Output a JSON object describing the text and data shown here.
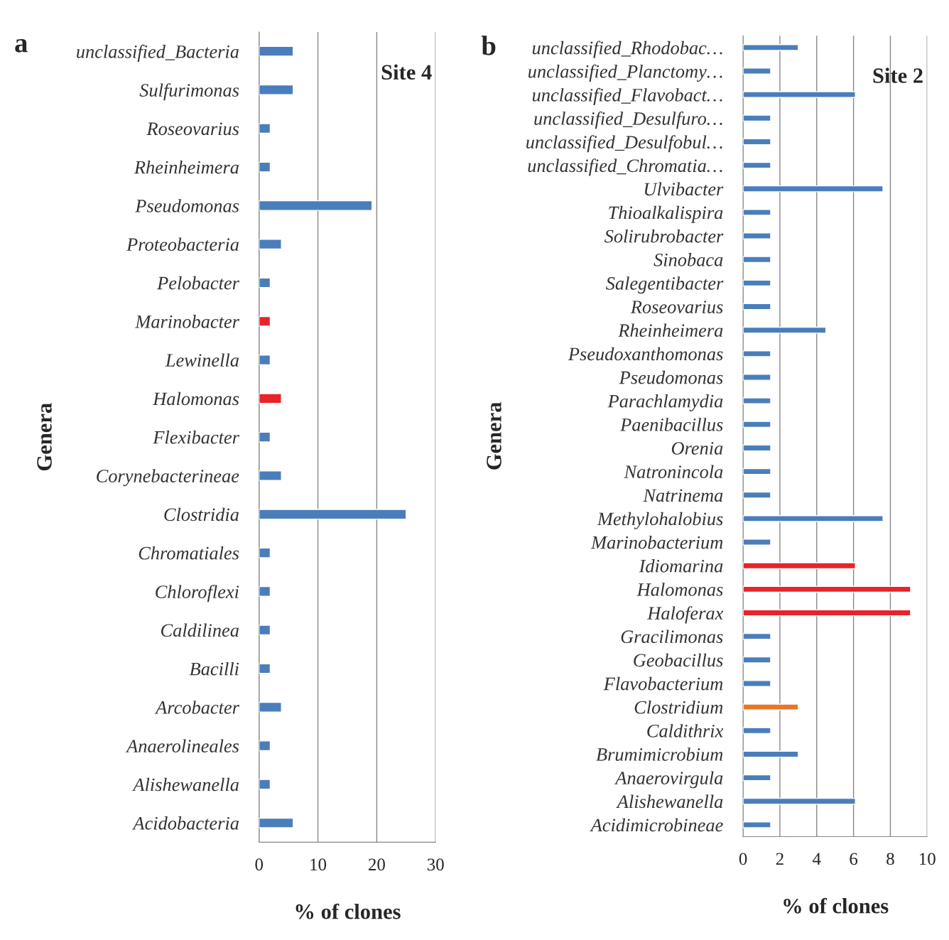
{
  "chart_data": [
    {
      "type": "bar",
      "orientation": "horizontal",
      "xlabel": "% of clones",
      "ylabel": "Genera",
      "annotations": [
        "a",
        "Site 4"
      ],
      "categories": [
        "unclassified_Bacteria",
        "Sulfurimonas",
        "Roseovarius",
        "Rheinheimera",
        "Pseudomonas",
        "Proteobacteria",
        "Pelobacter",
        "Marinobacter",
        "Lewinella",
        "Halomonas",
        "Flexibacter",
        "Corynebacterineae",
        "Clostridia",
        "Chromatiales",
        "Chloroflexi",
        "Caldilinea",
        "Bacilli",
        "Arcobacter",
        "Anaerolineales",
        "Alishewanella",
        "Acidobacteria"
      ],
      "values": [
        5.8,
        5.8,
        1.9,
        1.9,
        19.2,
        3.8,
        1.9,
        1.9,
        1.9,
        3.8,
        1.9,
        3.8,
        25,
        1.9,
        1.9,
        1.9,
        1.9,
        3.8,
        1.9,
        1.9,
        5.8
      ],
      "colors": [
        "#4a7ebb",
        "#4a7ebb",
        "#4a7ebb",
        "#4a7ebb",
        "#4a7ebb",
        "#4a7ebb",
        "#4a7ebb",
        "#e8232a",
        "#4a7ebb",
        "#e8232a",
        "#4a7ebb",
        "#4a7ebb",
        "#4a7ebb",
        "#4a7ebb",
        "#4a7ebb",
        "#4a7ebb",
        "#4a7ebb",
        "#4a7ebb",
        "#4a7ebb",
        "#4a7ebb",
        "#4a7ebb"
      ],
      "xlim": [
        0,
        30
      ],
      "xticks": [
        0,
        10,
        20,
        30
      ],
      "grid": "x"
    },
    {
      "type": "bar",
      "orientation": "horizontal",
      "xlabel": "% of clones",
      "ylabel": "Genera",
      "annotations": [
        "b",
        "Site 2"
      ],
      "categories": [
        "unclassified_Rhodobac…",
        "unclassified_Planctomy…",
        "unclassified_Flavobact…",
        "unclassified_Desulfuro…",
        "unclassified_Desulfobul…",
        "unclassified_Chromatia…",
        "Ulvibacter",
        "Thioalkalispira",
        "Solirubrobacter",
        "Sinobaca",
        "Salegentibacter",
        "Roseovarius",
        "Rheinheimera",
        "Pseudoxanthomonas",
        "Pseudomonas",
        "Parachlamydia",
        "Paenibacillus",
        "Orenia",
        "Natronincola",
        "Natrinema",
        "Methylohalobius",
        "Marinobacterium",
        "Idiomarina",
        "Halomonas",
        "Haloferax",
        "Gracilimonas",
        "Geobacillus",
        "Flavobacterium",
        "Clostridium",
        "Caldithrix",
        "Brumimicrobium",
        "Anaerovirgula",
        "Alishewanella",
        "Acidimicrobineae"
      ],
      "values": [
        3.0,
        1.5,
        6.1,
        1.5,
        1.5,
        1.5,
        7.6,
        1.5,
        1.5,
        1.5,
        1.5,
        1.5,
        4.5,
        1.5,
        1.5,
        1.5,
        1.5,
        1.5,
        1.5,
        1.5,
        7.6,
        1.5,
        6.1,
        9.1,
        9.1,
        1.5,
        1.5,
        1.5,
        3.0,
        1.5,
        3.0,
        1.5,
        6.1,
        1.5
      ],
      "colors": [
        "#4a7ebb",
        "#4a7ebb",
        "#4a7ebb",
        "#4a7ebb",
        "#4a7ebb",
        "#4a7ebb",
        "#4a7ebb",
        "#4a7ebb",
        "#4a7ebb",
        "#4a7ebb",
        "#4a7ebb",
        "#4a7ebb",
        "#4a7ebb",
        "#4a7ebb",
        "#4a7ebb",
        "#4a7ebb",
        "#4a7ebb",
        "#4a7ebb",
        "#4a7ebb",
        "#4a7ebb",
        "#4a7ebb",
        "#4a7ebb",
        "#e8232a",
        "#e8232a",
        "#e8232a",
        "#4a7ebb",
        "#4a7ebb",
        "#4a7ebb",
        "#e8762a",
        "#4a7ebb",
        "#4a7ebb",
        "#4a7ebb",
        "#4a7ebb",
        "#4a7ebb"
      ],
      "xlim": [
        0,
        10
      ],
      "xticks": [
        0,
        2,
        4,
        6,
        8,
        10
      ],
      "grid": "x"
    }
  ]
}
